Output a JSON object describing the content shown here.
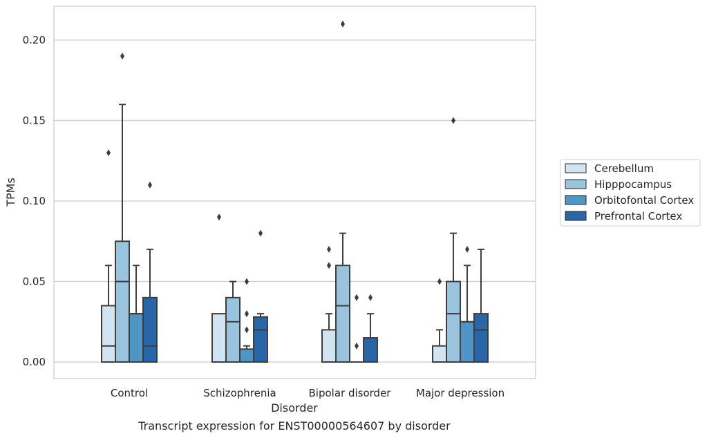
{
  "chart_data": {
    "type": "box",
    "title": "",
    "caption": "Transcript expression for ENST00000564607 by disorder",
    "xlabel": "Disorder",
    "ylabel": "TPMs",
    "ylim": [
      -0.01,
      0.22
    ],
    "yticks": [
      "0.00",
      "0.05",
      "0.10",
      "0.15",
      "0.20"
    ],
    "grid": "horizontal",
    "legend_position": "right",
    "categories": [
      "Control",
      "Schizophrenia",
      "Bipolar disorder",
      "Major depression"
    ],
    "series": [
      {
        "name": "Cerebellum",
        "color": "#d2e3f2",
        "boxes": [
          {
            "q1": 0.0,
            "median": 0.01,
            "q3": 0.035,
            "whisker_low": 0.0,
            "whisker_high": 0.06,
            "outliers": [
              0.13
            ]
          },
          {
            "q1": 0.0,
            "median": 0.0,
            "q3": 0.03,
            "whisker_low": 0.0,
            "whisker_high": 0.03,
            "outliers": [
              0.09
            ]
          },
          {
            "q1": 0.0,
            "median": 0.0,
            "q3": 0.02,
            "whisker_low": 0.0,
            "whisker_high": 0.03,
            "outliers": [
              0.06,
              0.07
            ]
          },
          {
            "q1": 0.0,
            "median": 0.0,
            "q3": 0.01,
            "whisker_low": 0.0,
            "whisker_high": 0.02,
            "outliers": [
              0.05
            ]
          }
        ]
      },
      {
        "name": "Hipppocampus",
        "color": "#9ac3de",
        "boxes": [
          {
            "q1": 0.0,
            "median": 0.05,
            "q3": 0.075,
            "whisker_low": 0.0,
            "whisker_high": 0.16,
            "outliers": [
              0.19
            ]
          },
          {
            "q1": 0.0,
            "median": 0.025,
            "q3": 0.04,
            "whisker_low": 0.0,
            "whisker_high": 0.05,
            "outliers": []
          },
          {
            "q1": 0.0,
            "median": 0.035,
            "q3": 0.06,
            "whisker_low": 0.0,
            "whisker_high": 0.08,
            "outliers": [
              0.21
            ]
          },
          {
            "q1": 0.0,
            "median": 0.03,
            "q3": 0.05,
            "whisker_low": 0.0,
            "whisker_high": 0.08,
            "outliers": [
              0.15
            ]
          }
        ]
      },
      {
        "name": "Orbitofontal Cortex",
        "color": "#5095c8",
        "boxes": [
          {
            "q1": 0.0,
            "median": 0.03,
            "q3": 0.03,
            "whisker_low": 0.0,
            "whisker_high": 0.06,
            "outliers": []
          },
          {
            "q1": 0.0,
            "median": 0.0,
            "q3": 0.008,
            "whisker_low": 0.0,
            "whisker_high": 0.01,
            "outliers": [
              0.02,
              0.03,
              0.05
            ]
          },
          {
            "q1": 0.0,
            "median": 0.0,
            "q3": 0.0,
            "whisker_low": 0.0,
            "whisker_high": 0.0,
            "outliers": [
              0.01,
              0.04
            ]
          },
          {
            "q1": 0.0,
            "median": 0.025,
            "q3": 0.025,
            "whisker_low": 0.0,
            "whisker_high": 0.06,
            "outliers": [
              0.07
            ]
          }
        ]
      },
      {
        "name": "Prefrontal Cortex",
        "color": "#2a66a8",
        "boxes": [
          {
            "q1": 0.0,
            "median": 0.01,
            "q3": 0.04,
            "whisker_low": 0.0,
            "whisker_high": 0.07,
            "outliers": [
              0.11
            ]
          },
          {
            "q1": 0.0,
            "median": 0.02,
            "q3": 0.028,
            "whisker_low": 0.0,
            "whisker_high": 0.03,
            "outliers": [
              0.08
            ]
          },
          {
            "q1": 0.0,
            "median": 0.0,
            "q3": 0.015,
            "whisker_low": 0.0,
            "whisker_high": 0.03,
            "outliers": [
              0.04
            ]
          },
          {
            "q1": 0.0,
            "median": 0.02,
            "q3": 0.03,
            "whisker_low": 0.0,
            "whisker_high": 0.07,
            "outliers": []
          }
        ]
      }
    ]
  }
}
